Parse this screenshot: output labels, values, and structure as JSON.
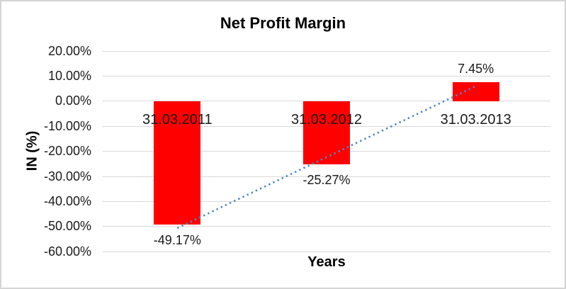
{
  "window": {
    "background": "#ffffff",
    "border_color": "#d5d5d5"
  },
  "chart": {
    "title": "Net Profit Margin",
    "x_axis_title": "Years",
    "y_axis_title": "IN (%)"
  },
  "chart_data": {
    "type": "bar",
    "title": "Net Profit Margin",
    "xlabel": "Years",
    "ylabel": "IN (%)",
    "categories": [
      "31.03.2011",
      "31.03.2012",
      "31.03.2013"
    ],
    "series": [
      {
        "name": "Net Profit Margin",
        "color": "#ff0000",
        "values": [
          -49.17,
          -25.27,
          7.45
        ]
      }
    ],
    "data_labels": [
      "-49.17%",
      "-25.27%",
      "7.45%"
    ],
    "ylim": [
      -60,
      20
    ],
    "y_ticks": [
      {
        "value": 20,
        "label": "20.00%"
      },
      {
        "value": 10,
        "label": "10.00%"
      },
      {
        "value": 0,
        "label": "0.00%"
      },
      {
        "value": -10,
        "label": "-10.00%"
      },
      {
        "value": -20,
        "label": "-20.00%"
      },
      {
        "value": -30,
        "label": "-30.00%"
      },
      {
        "value": -40,
        "label": "-40.00%"
      },
      {
        "value": -50,
        "label": "-50.00%"
      },
      {
        "value": -60,
        "label": "-60.00%"
      }
    ],
    "grid": true,
    "gridline_color": "#d9d9d9",
    "legend": "none",
    "trendline": {
      "type": "linear",
      "style": "dotted",
      "color": "#4e87c8",
      "start_value": -50.64,
      "end_value": 5.98
    }
  }
}
